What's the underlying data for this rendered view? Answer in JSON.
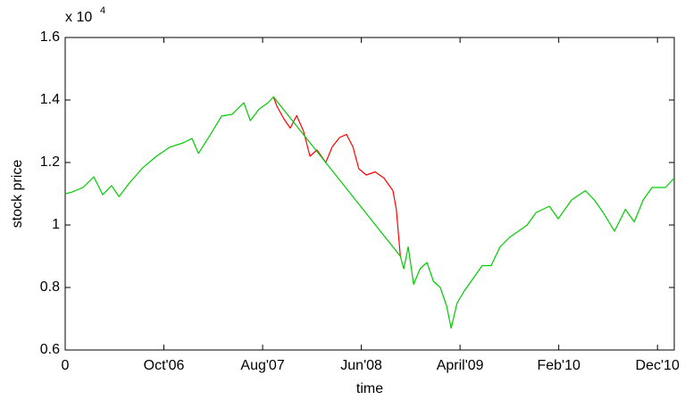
{
  "chart_data": {
    "type": "line",
    "x_label": "time",
    "y_label": "stock price",
    "y_multiplier": "x 10",
    "y_exponent": "4",
    "xlim": [
      0,
      1234
    ],
    "ylim": [
      0.6,
      1.6
    ],
    "xticks": [
      0,
      {
        "value": 200,
        "label": "Oct'06"
      },
      {
        "value": 400,
        "label": "Aug'07"
      },
      {
        "value": 600,
        "label": "Jun'08"
      },
      {
        "value": 800,
        "label": "April'09"
      },
      {
        "value": 1000,
        "label": "Feb'10"
      },
      {
        "value": 1200,
        "label": "Dec'10"
      }
    ],
    "yticks": [
      0.6,
      0.8,
      1,
      1.2,
      1.4,
      1.6
    ],
    "grid": false,
    "series": [
      {
        "color": "#ff0000",
        "x": [
          422,
          429,
          443,
          456,
          469,
          483,
          496,
          510,
          528,
          541,
          556,
          570,
          583,
          595,
          610,
          628,
          646,
          664,
          671,
          679
        ],
        "values": [
          1.41,
          1.38,
          1.34,
          1.31,
          1.35,
          1.3,
          1.22,
          1.24,
          1.2,
          1.25,
          1.28,
          1.29,
          1.25,
          1.18,
          1.16,
          1.17,
          1.15,
          1.11,
          1.05,
          0.9
        ]
      },
      {
        "color": "#00cc00",
        "x": [
          0,
          13,
          36,
          58,
          76,
          94,
          109,
          130,
          157,
          185,
          212,
          239,
          257,
          270,
          293,
          317,
          338,
          362,
          375,
          393,
          411,
          422,
          679,
          686,
          695,
          706,
          719,
          733,
          746,
          760,
          773,
          782,
          794,
          809,
          827,
          845,
          863,
          881,
          900,
          918,
          936,
          954,
          981,
          999,
          1026,
          1054,
          1072,
          1090,
          1113,
          1135,
          1153,
          1171,
          1189,
          1216,
          1234
        ],
        "values": [
          1.1,
          1.105,
          1.12,
          1.154,
          1.097,
          1.126,
          1.091,
          1.134,
          1.183,
          1.22,
          1.249,
          1.263,
          1.277,
          1.229,
          1.286,
          1.349,
          1.354,
          1.391,
          1.334,
          1.371,
          1.391,
          1.41,
          0.9,
          0.86,
          0.93,
          0.81,
          0.86,
          0.88,
          0.82,
          0.8,
          0.74,
          0.67,
          0.75,
          0.79,
          0.83,
          0.87,
          0.87,
          0.93,
          0.96,
          0.98,
          1.0,
          1.04,
          1.06,
          1.02,
          1.08,
          1.11,
          1.08,
          1.04,
          0.98,
          1.05,
          1.01,
          1.08,
          1.12,
          1.12,
          1.15
        ]
      }
    ]
  }
}
